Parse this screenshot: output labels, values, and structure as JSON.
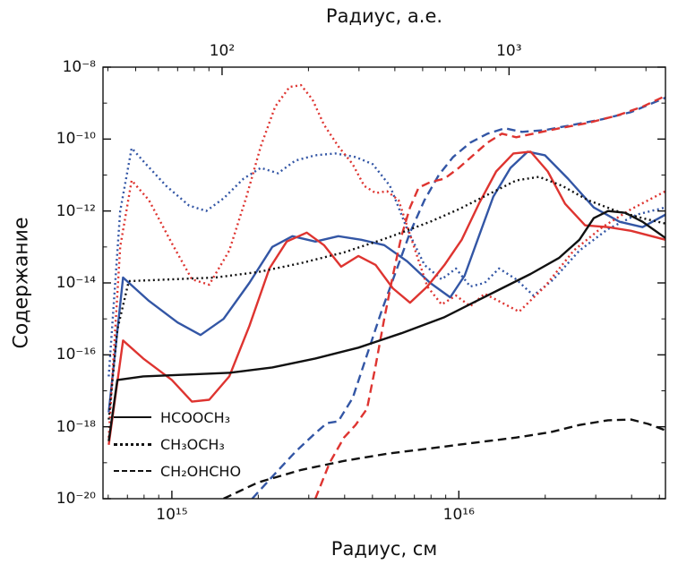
{
  "figure": {
    "top_axis_label": "Радиус, а.е.",
    "bottom_axis_label": "Радиус, см",
    "y_axis_label": "Содержание"
  },
  "legend": [
    {
      "label": "HCOOCH₃",
      "style": "solid"
    },
    {
      "label": "CH₃OCH₃",
      "style": "dotted"
    },
    {
      "label": "CH₂OHCHO",
      "style": "dashed"
    }
  ],
  "colors": {
    "black": "#111111",
    "blue": "#3356a5",
    "red": "#de3430"
  },
  "axes": {
    "y_ticks": [
      {
        "exp": -8,
        "label": "10⁻⁸"
      },
      {
        "exp": -10,
        "label": "10⁻¹⁰"
      },
      {
        "exp": -12,
        "label": "10⁻¹²"
      },
      {
        "exp": -14,
        "label": "10⁻¹⁴"
      },
      {
        "exp": -16,
        "label": "10⁻¹⁶"
      },
      {
        "exp": -18,
        "label": "10⁻¹⁸"
      },
      {
        "exp": -20,
        "label": "10⁻²⁰"
      }
    ],
    "x_bottom_ticks": [
      {
        "exp": 15,
        "label": "10¹⁵"
      },
      {
        "exp": 16,
        "label": "10¹⁶"
      }
    ],
    "x_top_ticks": [
      {
        "au_exp": 2,
        "label": "10²"
      },
      {
        "au_exp": 3,
        "label": "10³"
      }
    ]
  },
  "chart_data": {
    "type": "line",
    "xscale": "log",
    "yscale": "log",
    "title": "",
    "xlabel_bottom": "Радиус, см",
    "xlabel_top": "Радиус, а.е.",
    "ylabel": "Содержание",
    "xlim_log10_cm": [
      14.76,
      16.72
    ],
    "ylim_log10": [
      -20,
      -8
    ],
    "au_in_cm": 14960000000000.0,
    "legend_position": "lower-left",
    "series": [
      {
        "species": "HCOOCH₃",
        "color": "black",
        "linestyle": "solid",
        "points_log10": [
          [
            14.78,
            -18.4
          ],
          [
            14.81,
            -16.7
          ],
          [
            14.9,
            -16.6
          ],
          [
            15.05,
            -16.55
          ],
          [
            15.2,
            -16.5
          ],
          [
            15.35,
            -16.35
          ],
          [
            15.5,
            -16.1
          ],
          [
            15.65,
            -15.8
          ],
          [
            15.8,
            -15.4
          ],
          [
            15.95,
            -14.95
          ],
          [
            16.05,
            -14.55
          ],
          [
            16.15,
            -14.15
          ],
          [
            16.25,
            -13.75
          ],
          [
            16.35,
            -13.3
          ],
          [
            16.42,
            -12.8
          ],
          [
            16.47,
            -12.2
          ],
          [
            16.52,
            -12.0
          ],
          [
            16.58,
            -12.05
          ],
          [
            16.64,
            -12.3
          ],
          [
            16.72,
            -12.75
          ]
        ]
      },
      {
        "species": "CH₃OCH₃",
        "color": "black",
        "linestyle": "dotted",
        "points_log10": [
          [
            14.78,
            -17.8
          ],
          [
            14.81,
            -15.3
          ],
          [
            14.85,
            -13.95
          ],
          [
            15.0,
            -13.9
          ],
          [
            15.15,
            -13.85
          ],
          [
            15.3,
            -13.7
          ],
          [
            15.45,
            -13.45
          ],
          [
            15.6,
            -13.15
          ],
          [
            15.75,
            -12.75
          ],
          [
            15.9,
            -12.3
          ],
          [
            16.0,
            -11.95
          ],
          [
            16.1,
            -11.55
          ],
          [
            16.2,
            -11.15
          ],
          [
            16.28,
            -11.05
          ],
          [
            16.36,
            -11.3
          ],
          [
            16.45,
            -11.7
          ],
          [
            16.55,
            -12.0
          ],
          [
            16.64,
            -12.2
          ],
          [
            16.72,
            -12.35
          ]
        ]
      },
      {
        "species": "CH₂OHCHO",
        "color": "black",
        "linestyle": "dashed",
        "points_log10": [
          [
            15.18,
            -20.0
          ],
          [
            15.3,
            -19.55
          ],
          [
            15.45,
            -19.2
          ],
          [
            15.6,
            -18.95
          ],
          [
            15.75,
            -18.75
          ],
          [
            15.9,
            -18.6
          ],
          [
            16.05,
            -18.45
          ],
          [
            16.2,
            -18.3
          ],
          [
            16.32,
            -18.15
          ],
          [
            16.42,
            -17.95
          ],
          [
            16.52,
            -17.82
          ],
          [
            16.6,
            -17.8
          ],
          [
            16.66,
            -17.92
          ],
          [
            16.72,
            -18.1
          ]
        ]
      },
      {
        "species": "HCOOCH₃",
        "color": "blue",
        "linestyle": "solid",
        "points_log10": [
          [
            14.78,
            -17.6
          ],
          [
            14.83,
            -13.85
          ],
          [
            14.92,
            -14.5
          ],
          [
            15.02,
            -15.1
          ],
          [
            15.1,
            -15.45
          ],
          [
            15.18,
            -15.0
          ],
          [
            15.27,
            -14.0
          ],
          [
            15.35,
            -13.0
          ],
          [
            15.42,
            -12.7
          ],
          [
            15.5,
            -12.85
          ],
          [
            15.58,
            -12.7
          ],
          [
            15.66,
            -12.8
          ],
          [
            15.74,
            -12.95
          ],
          [
            15.82,
            -13.4
          ],
          [
            15.9,
            -14.0
          ],
          [
            15.97,
            -14.4
          ],
          [
            16.02,
            -13.8
          ],
          [
            16.07,
            -12.7
          ],
          [
            16.12,
            -11.6
          ],
          [
            16.18,
            -10.8
          ],
          [
            16.24,
            -10.35
          ],
          [
            16.3,
            -10.45
          ],
          [
            16.38,
            -11.1
          ],
          [
            16.47,
            -11.9
          ],
          [
            16.56,
            -12.3
          ],
          [
            16.64,
            -12.45
          ],
          [
            16.72,
            -12.1
          ]
        ]
      },
      {
        "species": "HCOOCH₃",
        "color": "red",
        "linestyle": "solid",
        "points_log10": [
          [
            14.78,
            -18.5
          ],
          [
            14.83,
            -15.6
          ],
          [
            14.9,
            -16.1
          ],
          [
            15.0,
            -16.7
          ],
          [
            15.07,
            -17.3
          ],
          [
            15.13,
            -17.25
          ],
          [
            15.2,
            -16.6
          ],
          [
            15.27,
            -15.2
          ],
          [
            15.34,
            -13.6
          ],
          [
            15.4,
            -12.85
          ],
          [
            15.47,
            -12.6
          ],
          [
            15.53,
            -12.95
          ],
          [
            15.59,
            -13.55
          ],
          [
            15.65,
            -13.25
          ],
          [
            15.71,
            -13.5
          ],
          [
            15.77,
            -14.15
          ],
          [
            15.83,
            -14.55
          ],
          [
            15.89,
            -14.1
          ],
          [
            15.95,
            -13.5
          ],
          [
            16.01,
            -12.8
          ],
          [
            16.07,
            -11.8
          ],
          [
            16.13,
            -10.9
          ],
          [
            16.19,
            -10.4
          ],
          [
            16.25,
            -10.35
          ],
          [
            16.31,
            -10.9
          ],
          [
            16.37,
            -11.8
          ],
          [
            16.44,
            -12.4
          ],
          [
            16.52,
            -12.45
          ],
          [
            16.6,
            -12.55
          ],
          [
            16.72,
            -12.8
          ]
        ]
      },
      {
        "species": "CH₃OCH₃",
        "color": "blue",
        "linestyle": "dotted",
        "points_log10": [
          [
            14.78,
            -16.6
          ],
          [
            14.82,
            -12.0
          ],
          [
            14.86,
            -10.25
          ],
          [
            14.91,
            -10.7
          ],
          [
            14.98,
            -11.3
          ],
          [
            15.06,
            -11.85
          ],
          [
            15.12,
            -12.0
          ],
          [
            15.18,
            -11.65
          ],
          [
            15.25,
            -11.1
          ],
          [
            15.31,
            -10.8
          ],
          [
            15.37,
            -10.95
          ],
          [
            15.43,
            -10.6
          ],
          [
            15.5,
            -10.45
          ],
          [
            15.57,
            -10.4
          ],
          [
            15.64,
            -10.5
          ],
          [
            15.7,
            -10.7
          ],
          [
            15.76,
            -11.3
          ],
          [
            15.82,
            -12.5
          ],
          [
            15.88,
            -13.5
          ],
          [
            15.94,
            -13.9
          ],
          [
            15.99,
            -13.6
          ],
          [
            16.04,
            -14.1
          ],
          [
            16.09,
            -14.0
          ],
          [
            16.14,
            -13.6
          ],
          [
            16.2,
            -13.9
          ],
          [
            16.26,
            -14.35
          ],
          [
            16.33,
            -13.9
          ],
          [
            16.42,
            -13.1
          ],
          [
            16.52,
            -12.5
          ],
          [
            16.62,
            -12.1
          ],
          [
            16.72,
            -11.9
          ]
        ]
      },
      {
        "species": "CH₃OCH₃",
        "color": "red",
        "linestyle": "dotted",
        "points_log10": [
          [
            14.78,
            -18.3
          ],
          [
            14.82,
            -13.0
          ],
          [
            14.86,
            -11.15
          ],
          [
            14.92,
            -11.7
          ],
          [
            15.0,
            -12.9
          ],
          [
            15.07,
            -13.9
          ],
          [
            15.13,
            -14.05
          ],
          [
            15.2,
            -13.1
          ],
          [
            15.26,
            -11.6
          ],
          [
            15.31,
            -10.2
          ],
          [
            15.36,
            -9.1
          ],
          [
            15.41,
            -8.55
          ],
          [
            15.45,
            -8.5
          ],
          [
            15.49,
            -8.9
          ],
          [
            15.53,
            -9.6
          ],
          [
            15.58,
            -10.2
          ],
          [
            15.63,
            -10.7
          ],
          [
            15.67,
            -11.3
          ],
          [
            15.71,
            -11.5
          ],
          [
            15.75,
            -11.45
          ],
          [
            15.79,
            -11.7
          ],
          [
            15.84,
            -12.9
          ],
          [
            15.89,
            -14.1
          ],
          [
            15.94,
            -14.6
          ],
          [
            15.99,
            -14.35
          ],
          [
            16.04,
            -14.65
          ],
          [
            16.09,
            -14.3
          ],
          [
            16.15,
            -14.55
          ],
          [
            16.21,
            -14.8
          ],
          [
            16.3,
            -14.1
          ],
          [
            16.4,
            -13.1
          ],
          [
            16.5,
            -12.45
          ],
          [
            16.6,
            -11.95
          ],
          [
            16.72,
            -11.45
          ]
        ]
      },
      {
        "species": "CH₂OHCHO",
        "color": "blue",
        "linestyle": "dashed",
        "points_log10": [
          [
            15.28,
            -20.0
          ],
          [
            15.36,
            -19.3
          ],
          [
            15.43,
            -18.7
          ],
          [
            15.49,
            -18.25
          ],
          [
            15.54,
            -17.9
          ],
          [
            15.58,
            -17.85
          ],
          [
            15.63,
            -17.2
          ],
          [
            15.68,
            -16.0
          ],
          [
            15.73,
            -14.8
          ],
          [
            15.78,
            -13.7
          ],
          [
            15.83,
            -12.6
          ],
          [
            15.88,
            -11.7
          ],
          [
            15.93,
            -11.0
          ],
          [
            15.98,
            -10.5
          ],
          [
            16.04,
            -10.1
          ],
          [
            16.1,
            -9.85
          ],
          [
            16.16,
            -9.7
          ],
          [
            16.22,
            -9.8
          ],
          [
            16.3,
            -9.75
          ],
          [
            16.4,
            -9.6
          ],
          [
            16.5,
            -9.45
          ],
          [
            16.6,
            -9.25
          ],
          [
            16.72,
            -8.85
          ]
        ]
      },
      {
        "species": "CH₂OHCHO",
        "color": "red",
        "linestyle": "dashed",
        "points_log10": [
          [
            15.5,
            -20.0
          ],
          [
            15.55,
            -19.0
          ],
          [
            15.6,
            -18.3
          ],
          [
            15.64,
            -17.95
          ],
          [
            15.68,
            -17.5
          ],
          [
            15.71,
            -16.3
          ],
          [
            15.74,
            -15.0
          ],
          [
            15.77,
            -13.8
          ],
          [
            15.8,
            -12.7
          ],
          [
            15.83,
            -11.9
          ],
          [
            15.86,
            -11.35
          ],
          [
            15.9,
            -11.2
          ],
          [
            15.95,
            -11.1
          ],
          [
            16.0,
            -10.8
          ],
          [
            16.05,
            -10.45
          ],
          [
            16.1,
            -10.1
          ],
          [
            16.15,
            -9.85
          ],
          [
            16.2,
            -9.95
          ],
          [
            16.26,
            -9.85
          ],
          [
            16.35,
            -9.7
          ],
          [
            16.45,
            -9.55
          ],
          [
            16.55,
            -9.35
          ],
          [
            16.64,
            -9.1
          ],
          [
            16.72,
            -8.8
          ]
        ]
      }
    ]
  }
}
